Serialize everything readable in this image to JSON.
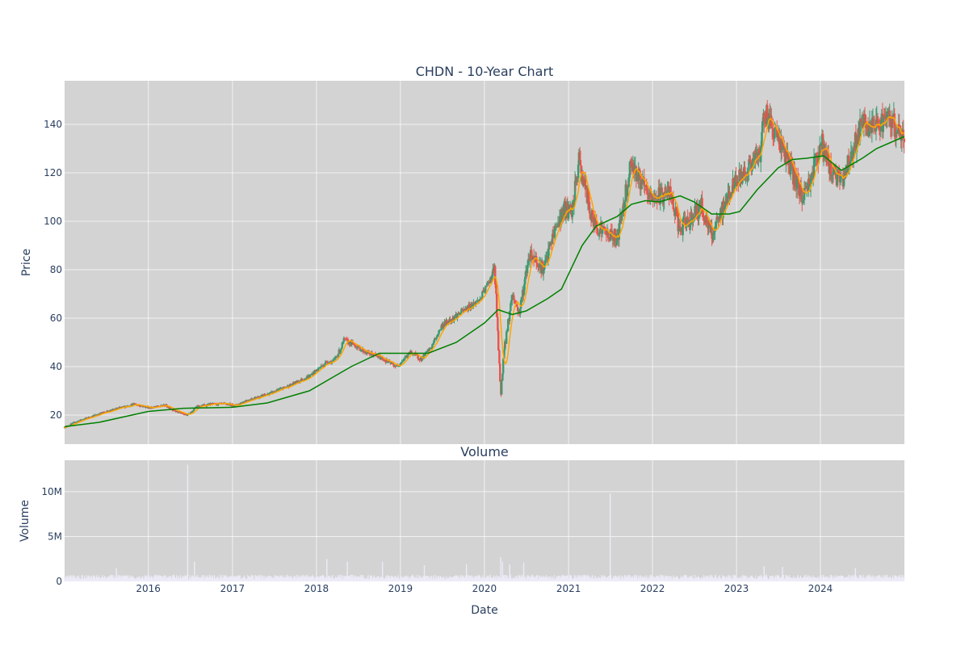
{
  "chart_data": [
    {
      "type": "candlestick",
      "title": "CHDN - 10-Year Chart",
      "ylabel": "Price",
      "xlabel": "",
      "xlim": [
        "2015-01-02",
        "2024-12-31"
      ],
      "ylim": [
        8,
        158
      ],
      "yticks": [
        20,
        40,
        60,
        80,
        100,
        120,
        140
      ],
      "grid": true,
      "colors": {
        "up": "#3d9970",
        "down": "#e8534a",
        "ma_short": "#ffa500",
        "ma_long": "#008000",
        "background": "#d3d3d3"
      },
      "close_series": {
        "name": "Close",
        "points": [
          [
            "2015-01-02",
            15
          ],
          [
            "2015-03-01",
            17.5
          ],
          [
            "2015-06-01",
            20.5
          ],
          [
            "2015-09-01",
            23
          ],
          [
            "2015-11-01",
            24.5
          ],
          [
            "2016-01-10",
            23
          ],
          [
            "2016-03-15",
            24
          ],
          [
            "2016-05-01",
            21.5
          ],
          [
            "2016-06-15",
            20
          ],
          [
            "2016-08-01",
            23.5
          ],
          [
            "2016-10-01",
            24.5
          ],
          [
            "2016-12-01",
            24.5
          ],
          [
            "2017-01-15",
            24
          ],
          [
            "2017-03-01",
            26
          ],
          [
            "2017-06-01",
            28.5
          ],
          [
            "2017-09-01",
            32
          ],
          [
            "2017-12-01",
            36
          ],
          [
            "2018-02-15",
            42
          ],
          [
            "2018-03-15",
            42
          ],
          [
            "2018-04-15",
            47
          ],
          [
            "2018-05-01",
            51
          ],
          [
            "2018-06-15",
            49
          ],
          [
            "2018-08-01",
            46
          ],
          [
            "2018-10-01",
            44
          ],
          [
            "2018-12-15",
            40
          ],
          [
            "2019-02-15",
            46
          ],
          [
            "2019-04-01",
            43
          ],
          [
            "2019-05-15",
            48
          ],
          [
            "2019-07-01",
            57
          ],
          [
            "2019-10-01",
            63
          ],
          [
            "2019-12-15",
            68
          ],
          [
            "2020-02-15",
            80
          ],
          [
            "2020-03-12",
            28
          ],
          [
            "2020-03-25",
            45
          ],
          [
            "2020-05-01",
            70
          ],
          [
            "2020-06-01",
            62
          ],
          [
            "2020-07-15",
            87
          ],
          [
            "2020-08-15",
            84
          ],
          [
            "2020-09-15",
            80
          ],
          [
            "2020-11-01",
            96
          ],
          [
            "2020-12-15",
            105
          ],
          [
            "2021-01-15",
            103
          ],
          [
            "2021-02-15",
            125
          ],
          [
            "2021-04-15",
            100
          ],
          [
            "2021-06-15",
            95
          ],
          [
            "2021-08-01",
            93
          ],
          [
            "2021-10-01",
            125
          ],
          [
            "2021-11-01",
            118
          ],
          [
            "2021-12-15",
            110
          ],
          [
            "2022-01-15",
            110
          ],
          [
            "2022-03-15",
            112
          ],
          [
            "2022-05-01",
            96
          ],
          [
            "2022-06-01",
            100
          ],
          [
            "2022-08-01",
            106
          ],
          [
            "2022-09-15",
            94
          ],
          [
            "2022-10-15",
            100
          ],
          [
            "2022-12-01",
            112
          ],
          [
            "2023-01-15",
            118
          ],
          [
            "2023-03-01",
            123
          ],
          [
            "2023-04-15",
            128
          ],
          [
            "2023-05-01",
            146
          ],
          [
            "2023-06-01",
            140
          ],
          [
            "2023-07-15",
            132
          ],
          [
            "2023-09-01",
            120
          ],
          [
            "2023-10-15",
            110
          ],
          [
            "2023-11-20",
            118
          ],
          [
            "2024-01-05",
            133
          ],
          [
            "2024-02-01",
            124
          ],
          [
            "2024-04-01",
            116
          ],
          [
            "2024-05-15",
            128
          ],
          [
            "2024-07-01",
            140
          ],
          [
            "2024-08-15",
            138
          ],
          [
            "2024-10-01",
            142
          ],
          [
            "2024-11-15",
            140
          ],
          [
            "2024-12-31",
            133
          ]
        ]
      },
      "ma_long_series": {
        "name": "",
        "points": [
          [
            "2015-01-02",
            15.2
          ],
          [
            "2015-06-01",
            17
          ],
          [
            "2016-01-01",
            21.5
          ],
          [
            "2016-06-01",
            22.8
          ],
          [
            "2017-01-01",
            23.2
          ],
          [
            "2017-06-01",
            25
          ],
          [
            "2017-12-01",
            30
          ],
          [
            "2018-06-01",
            40
          ],
          [
            "2018-10-01",
            45.5
          ],
          [
            "2019-02-01",
            45.5
          ],
          [
            "2019-05-01",
            45.5
          ],
          [
            "2019-09-01",
            50
          ],
          [
            "2020-01-01",
            58
          ],
          [
            "2020-03-01",
            63.5
          ],
          [
            "2020-05-01",
            61.5
          ],
          [
            "2020-07-01",
            63
          ],
          [
            "2020-10-01",
            68
          ],
          [
            "2020-12-01",
            72
          ],
          [
            "2021-03-01",
            90
          ],
          [
            "2021-05-01",
            98
          ],
          [
            "2021-08-01",
            102
          ],
          [
            "2021-10-01",
            107
          ],
          [
            "2021-12-01",
            108.5
          ],
          [
            "2022-02-01",
            108
          ],
          [
            "2022-05-01",
            110.5
          ],
          [
            "2022-07-01",
            108
          ],
          [
            "2022-09-15",
            103
          ],
          [
            "2022-12-01",
            103
          ],
          [
            "2023-01-15",
            104
          ],
          [
            "2023-04-01",
            113
          ],
          [
            "2023-07-01",
            122
          ],
          [
            "2023-09-01",
            125.5
          ],
          [
            "2023-11-01",
            126
          ],
          [
            "2024-01-15",
            127
          ],
          [
            "2024-04-01",
            121
          ],
          [
            "2024-07-01",
            126
          ],
          [
            "2024-09-01",
            130
          ],
          [
            "2024-12-31",
            135
          ]
        ]
      },
      "volume_events": [
        [
          "2015-08-15",
          1.5
        ],
        [
          "2016-06-20",
          13
        ],
        [
          "2016-07-20",
          2.2
        ],
        [
          "2018-02-15",
          2.5
        ],
        [
          "2018-05-15",
          2.2
        ],
        [
          "2018-10-15",
          2.2
        ],
        [
          "2019-04-15",
          1.8
        ],
        [
          "2019-10-15",
          1.9
        ],
        [
          "2020-03-12",
          2.7
        ],
        [
          "2020-03-20",
          2.2
        ],
        [
          "2020-04-20",
          1.9
        ],
        [
          "2020-06-20",
          2.1
        ],
        [
          "2021-07-01",
          9.8
        ],
        [
          "2023-05-01",
          1.7
        ],
        [
          "2023-07-20",
          1.6
        ],
        [
          "2024-06-01",
          1.5
        ]
      ]
    },
    {
      "type": "bar",
      "title": "Volume",
      "ylabel": "Volume",
      "xlabel": "Date",
      "ylim": [
        0,
        13500000
      ],
      "yticks": [
        {
          "value": 0,
          "label": "0"
        },
        {
          "value": 5000000,
          "label": "5M"
        },
        {
          "value": 10000000,
          "label": "10M"
        }
      ],
      "xticks": [
        {
          "date": "2016-01-01",
          "label": "2016"
        },
        {
          "date": "2017-01-01",
          "label": "2017"
        },
        {
          "date": "2018-01-01",
          "label": "2018"
        },
        {
          "date": "2019-01-01",
          "label": "2019"
        },
        {
          "date": "2020-01-01",
          "label": "2020"
        },
        {
          "date": "2021-01-01",
          "label": "2021"
        },
        {
          "date": "2022-01-01",
          "label": "2022"
        },
        {
          "date": "2023-01-01",
          "label": "2023"
        },
        {
          "date": "2024-01-01",
          "label": "2024"
        }
      ],
      "grid": true,
      "colors": {
        "bar": "#ecebf7",
        "background": "#d3d3d3"
      }
    }
  ]
}
